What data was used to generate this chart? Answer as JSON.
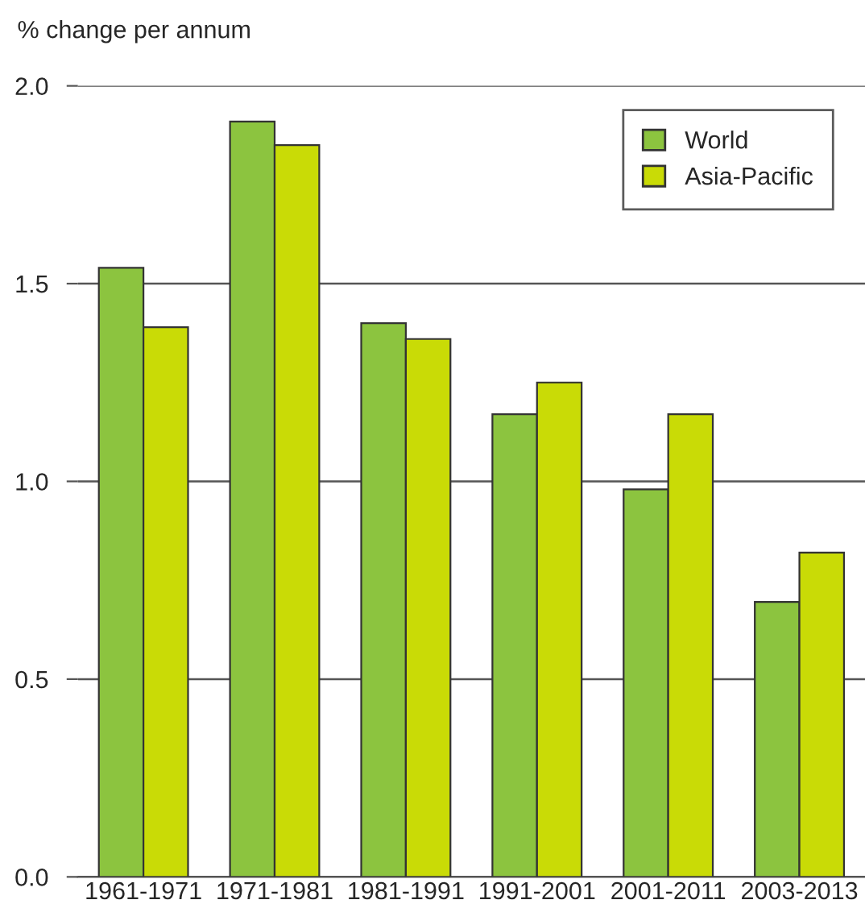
{
  "chart_data": {
    "type": "bar",
    "ylabel": "% change per annum",
    "categories": [
      "1961-1971",
      "1971-1981",
      "1981-1991",
      "1991-2001",
      "2001-2011",
      "2003-2013"
    ],
    "series": [
      {
        "name": "World",
        "color": "#8cc43f",
        "values": [
          1.54,
          1.91,
          1.4,
          1.17,
          0.98,
          0.695
        ]
      },
      {
        "name": "Asia-Pacific",
        "color": "#c9db06",
        "values": [
          1.39,
          1.85,
          1.36,
          1.25,
          1.17,
          0.82
        ]
      }
    ],
    "ylim": [
      0,
      2.0
    ],
    "yticks": [
      {
        "value": 0,
        "label": "0.0"
      },
      {
        "value": 0.5,
        "label": "0.5"
      },
      {
        "value": 1.0,
        "label": "1.0"
      },
      {
        "value": 1.5,
        "label": "1.5"
      },
      {
        "value": 2.0,
        "label": "2.0"
      }
    ],
    "grid": "y",
    "legend": "top right"
  }
}
